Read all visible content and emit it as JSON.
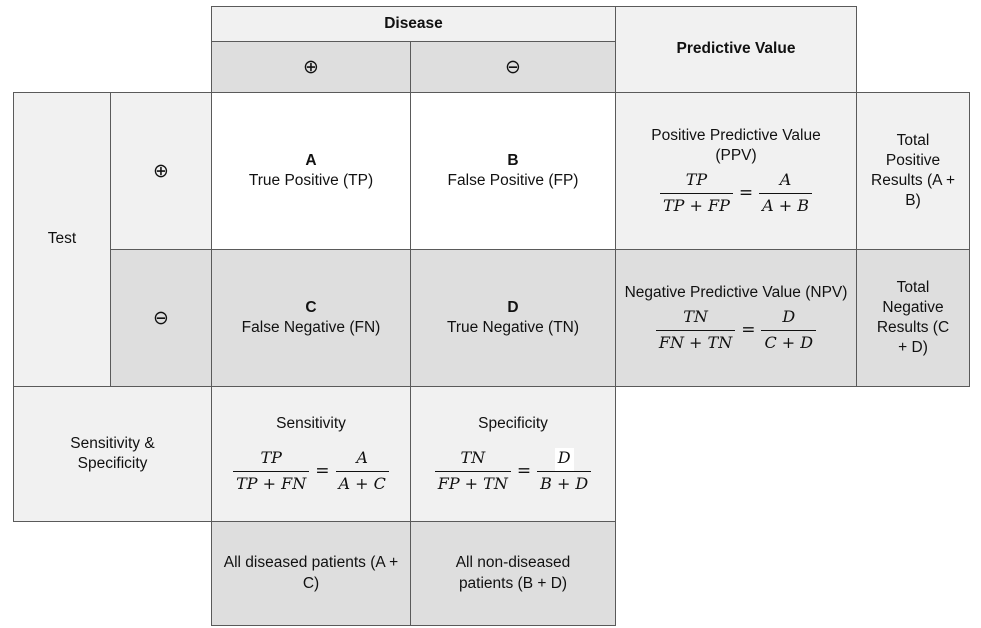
{
  "header": {
    "disease": "Disease",
    "predictive_value": "Predictive Value",
    "plus": "⊕",
    "minus": "⊖"
  },
  "rows": {
    "test": "Test",
    "plus": "⊕",
    "minus": "⊖",
    "sens_spec": "Sensitivity & Specificity"
  },
  "cells": {
    "a_letter": "A",
    "a_text": "True Positive (TP)",
    "b_letter": "B",
    "b_text": "False Positive (FP)",
    "c_letter": "C",
    "c_text": "False Negative (FN)",
    "d_letter": "D",
    "d_text": "True Negative (TN)"
  },
  "ppv": {
    "title": "Positive Predictive Value (PPV)",
    "num1": "TP",
    "den1": "TP + FP",
    "eq": "=",
    "num2": "A",
    "den2": "A + B"
  },
  "npv": {
    "title": "Negative Predictive Value (NPV)",
    "num1": "TN",
    "den1": "FN + TN",
    "eq": "=",
    "num2": "D",
    "den2": "C + D"
  },
  "totals": {
    "positive": "Total Positive Results (A + B)",
    "negative": "Total Negative Results (C + D)"
  },
  "sensitivity": {
    "title": "Sensitivity",
    "num1": "TP",
    "den1": "TP + FN",
    "eq": "=",
    "num2": "A",
    "den2": "A + C"
  },
  "specificity": {
    "title": "Specificity",
    "num1": "TN",
    "den1": "FP + TN",
    "eq": "=",
    "num2": "D",
    "den2": "B + D"
  },
  "bottom": {
    "diseased": "All diseased patients (A + C)",
    "non_diseased": "All non-diseased patients (B + D)"
  }
}
